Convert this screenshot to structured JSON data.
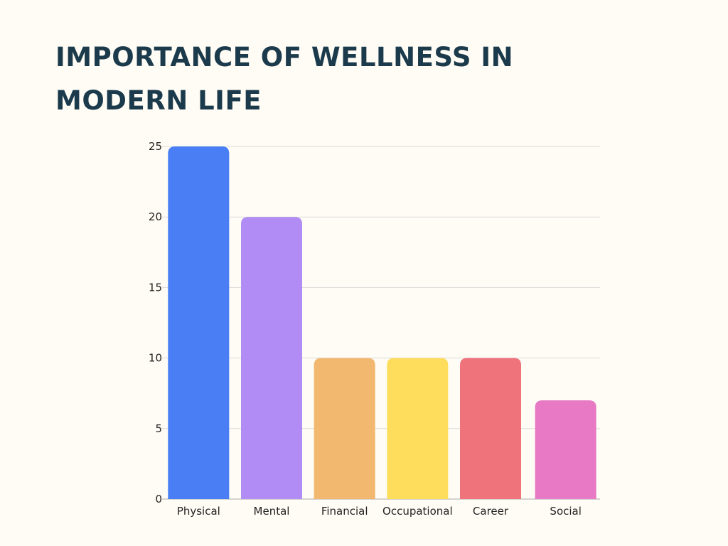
{
  "chart_data": {
    "type": "bar",
    "title": "IMPORTANCE OF WELLNESS IN MODERN LIFE",
    "xlabel": "",
    "ylabel": "",
    "categories": [
      "Physical",
      "Mental",
      "Financial",
      "Occupational",
      "Career",
      "Social"
    ],
    "values": [
      25,
      20,
      10,
      10,
      10,
      7
    ],
    "colors": [
      "#4a7ef5",
      "#b08cf4",
      "#f2b870",
      "#fedd5c",
      "#ef737b",
      "#e879c4"
    ],
    "ylim": [
      0,
      25
    ],
    "yticks": [
      0,
      5,
      10,
      15,
      20,
      25
    ],
    "grid": true,
    "legend": "none"
  }
}
